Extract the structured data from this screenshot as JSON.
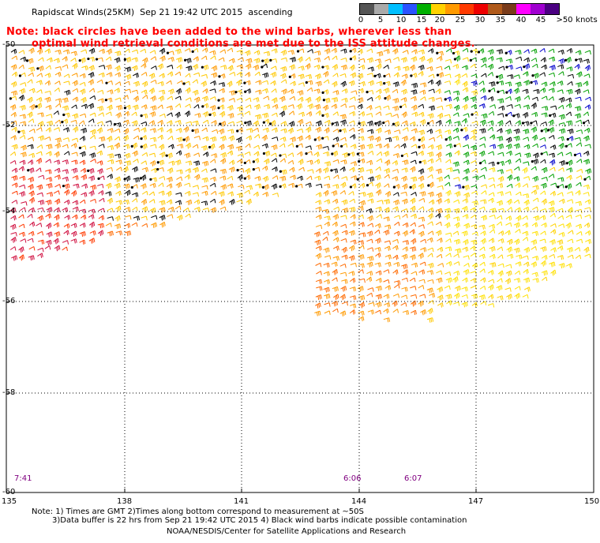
{
  "header": {
    "title": "Rapidscat Winds(25KM)  Sep 21 19:42 UTC 2015  ascending",
    "note_line1": "Note: black circles have been added to the wind barbs, wherever less than",
    "note_line2": "optimal wind retrieval conditions are met due to the ISS attitude changes."
  },
  "legend": {
    "labels": [
      "0",
      "5",
      "10",
      "15",
      "20",
      "25",
      "30",
      "35",
      "40",
      "45",
      ">50",
      "knots"
    ],
    "colors": [
      "#555555",
      "#aaaaaa",
      "#00bfff",
      "#2a52ff",
      "#00b000",
      "#ffd200",
      "#ff9a00",
      "#ff3a00",
      "#ee0000",
      "#b05a1a",
      "#7a3b1a",
      "#ff00ff",
      "#a000d0",
      "#4b0082"
    ]
  },
  "axes": {
    "lat_labels": [
      "-50",
      "-52",
      "-54",
      "-56",
      "-58",
      "-60"
    ],
    "lon_labels": [
      "135",
      "138",
      "141",
      "144",
      "147",
      "150"
    ]
  },
  "times": [
    "7:41",
    "6:06",
    "6:07"
  ],
  "footer": {
    "line1": "Note: 1) Times are GMT 2)Times along bottom correspond to measurement at ~50S",
    "line2": "3)Data buffer is 22 hrs from Sep 21 19:42 UTC 2015 4) Black wind barbs indicate possible contamination",
    "credit": "NOAA/NESDIS/Center for Satellite Applications and Research"
  }
}
